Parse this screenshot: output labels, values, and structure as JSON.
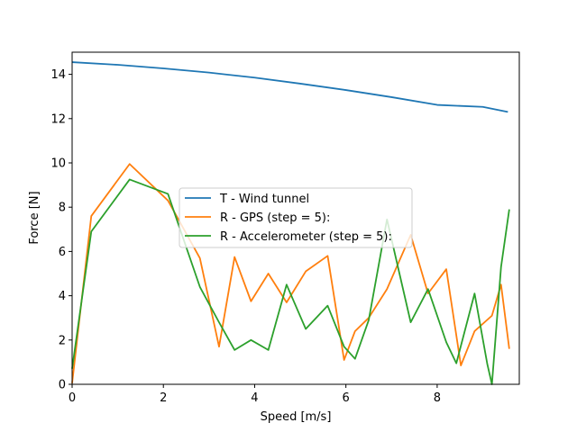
{
  "chart_data": {
    "type": "line",
    "title": "",
    "xlabel": "Speed [m/s]",
    "ylabel": "Force [N]",
    "xlim": [
      0,
      9.8
    ],
    "ylim": [
      0,
      15
    ],
    "xticks": [
      "0",
      "2",
      "4",
      "6",
      "8"
    ],
    "yticks": [
      "0",
      "2",
      "4",
      "6",
      "8",
      "10",
      "12",
      "14"
    ],
    "grid": false,
    "legend_position": "center",
    "series": [
      {
        "name": "T - Wind tunnel",
        "color": "#1f77b4",
        "x": [
          0,
          1,
          2,
          3,
          4,
          5,
          6,
          7,
          8,
          9,
          9.55
        ],
        "y": [
          14.55,
          14.43,
          14.27,
          14.08,
          13.85,
          13.58,
          13.29,
          12.97,
          12.62,
          12.53,
          12.3
        ]
      },
      {
        "name": "R - GPS (step = 5):",
        "color": "#ff7f0e",
        "x": [
          0,
          0.42,
          1.26,
          2.1,
          2.8,
          3.22,
          3.56,
          3.92,
          4.3,
          4.7,
          5.12,
          5.6,
          5.96,
          6.2,
          6.5,
          6.9,
          7.42,
          7.8,
          8.2,
          8.52,
          8.82,
          9.2,
          9.4,
          9.58
        ],
        "y": [
          0.05,
          7.6,
          9.95,
          8.3,
          5.7,
          1.7,
          5.75,
          3.75,
          5.0,
          3.7,
          5.1,
          5.8,
          1.1,
          2.4,
          3.0,
          4.3,
          6.75,
          4.1,
          5.2,
          0.85,
          2.4,
          3.1,
          4.5,
          1.6
        ]
      },
      {
        "name": "R - Accelerometer (step = 5):",
        "color": "#2ca02c",
        "x": [
          0,
          0.42,
          1.26,
          2.1,
          2.55,
          2.8,
          3.22,
          3.56,
          3.92,
          4.3,
          4.7,
          5.12,
          5.6,
          5.96,
          6.2,
          6.5,
          6.9,
          7.42,
          7.8,
          8.2,
          8.42,
          8.82,
          9.1,
          9.2,
          9.4,
          9.58
        ],
        "y": [
          0.7,
          6.9,
          9.25,
          8.6,
          5.9,
          4.4,
          2.8,
          1.55,
          2.0,
          1.55,
          4.5,
          2.5,
          3.55,
          1.7,
          1.15,
          2.9,
          7.45,
          2.8,
          4.3,
          1.9,
          0.95,
          4.1,
          0.9,
          -0.2,
          5.3,
          7.9
        ]
      }
    ]
  }
}
